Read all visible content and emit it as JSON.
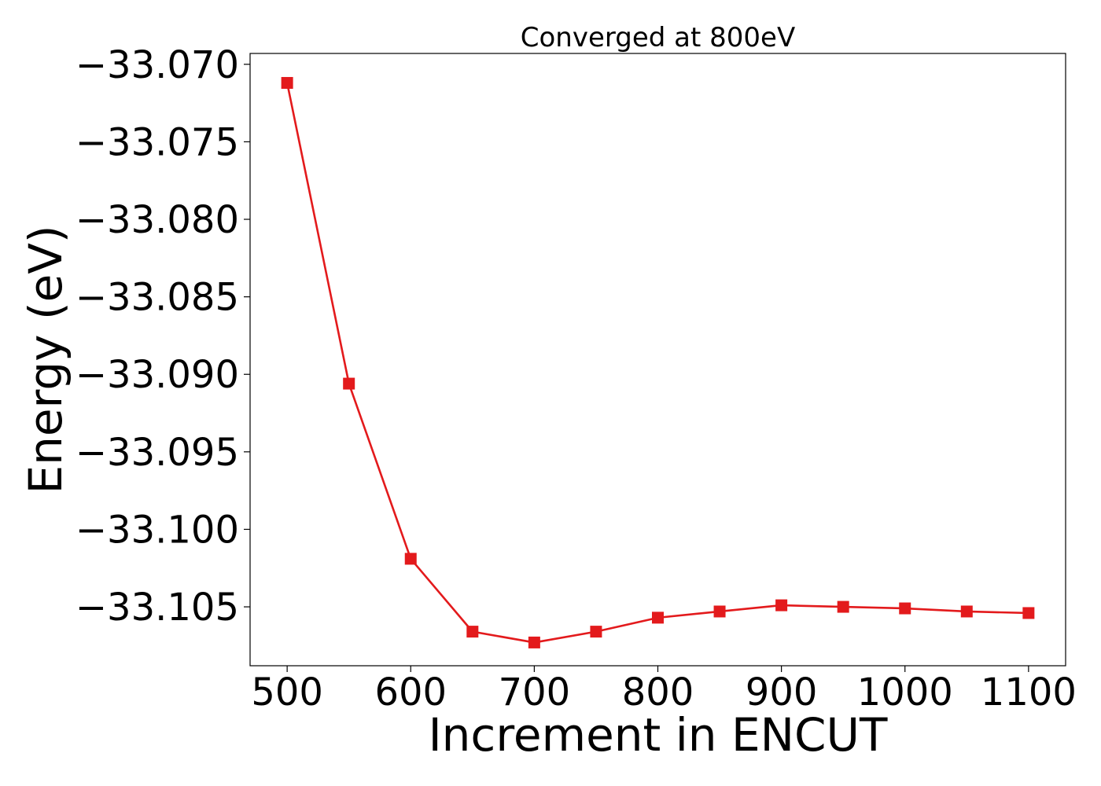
{
  "chart_data": {
    "type": "line",
    "title": "Converged at 800eV",
    "xlabel": "Increment in ENCUT",
    "ylabel": "Energy (eV)",
    "x": [
      500,
      550,
      600,
      650,
      700,
      750,
      800,
      850,
      900,
      950,
      1000,
      1050,
      1100
    ],
    "series": [
      {
        "values": [
          -33.0712,
          -33.0906,
          -33.1019,
          -33.1066,
          -33.1073,
          -33.1066,
          -33.1057,
          -33.1053,
          -33.1049,
          -33.105,
          -33.1051,
          -33.1053,
          -33.1054
        ],
        "color": "#e31a1c",
        "marker": "square"
      }
    ],
    "xlim": [
      470,
      1130
    ],
    "ylim": [
      -33.1088,
      -33.0693
    ],
    "xticks": [
      500,
      600,
      700,
      800,
      900,
      1000,
      1100
    ],
    "xtick_labels": [
      "500",
      "600",
      "700",
      "800",
      "900",
      "1000",
      "1100"
    ],
    "yticks": [
      -33.07,
      -33.075,
      -33.08,
      -33.085,
      -33.09,
      -33.095,
      -33.1,
      -33.105
    ],
    "ytick_labels": [
      "−33.070",
      "−33.075",
      "−33.080",
      "−33.085",
      "−33.090",
      "−33.095",
      "−33.100",
      "−33.105"
    ],
    "grid": false,
    "legend": "none"
  }
}
